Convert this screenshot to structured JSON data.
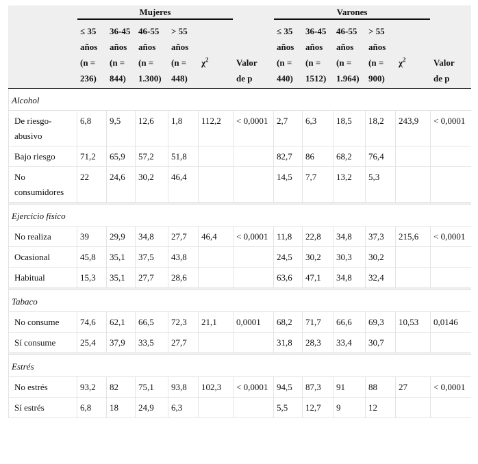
{
  "table": {
    "groups": [
      {
        "name": "Mujeres",
        "columns": [
          [
            "≤ 35",
            "años",
            "(n =",
            "236)"
          ],
          [
            "36-45",
            "años",
            "(n =",
            "844)"
          ],
          [
            "46-55",
            "años",
            "(n =",
            "1.300)"
          ],
          [
            "> 55",
            "años",
            "(n =",
            "448)"
          ]
        ],
        "chi": "χ",
        "chi_sup": "2",
        "p_label": [
          "Valor",
          "de p"
        ]
      },
      {
        "name": "Varones",
        "columns": [
          [
            "≤ 35",
            "años",
            "(n =",
            "440)"
          ],
          [
            "36-45",
            "años",
            "(n =",
            "1512)"
          ],
          [
            "46-55",
            "años",
            "(n =",
            "1.964)"
          ],
          [
            "> 55",
            "años",
            "(n =",
            "900)"
          ]
        ],
        "chi": "χ",
        "chi_sup": "2",
        "p_label": [
          "Valor",
          "de p"
        ]
      }
    ],
    "sections": [
      {
        "title": "Alcohol",
        "rows": [
          [
            "De riesgo-abusivo",
            "6,8",
            "9,5",
            "12,6",
            "1,8",
            "112,2",
            "< 0,0001",
            "2,7",
            "6,3",
            "18,5",
            "18,2",
            "243,9",
            "< 0,0001"
          ],
          [
            "Bajo riesgo",
            "71,2",
            "65,9",
            "57,2",
            "51,8",
            null,
            null,
            "82,7",
            "86",
            "68,2",
            "76,4",
            null,
            null
          ],
          [
            "No consumidores",
            "22",
            "24,6",
            "30,2",
            "46,4",
            null,
            null,
            "14,5",
            "7,7",
            "13,2",
            "5,3",
            null,
            null
          ]
        ]
      },
      {
        "title": "Ejercicio físico",
        "rows": [
          [
            "No realiza",
            "39",
            "29,9",
            "34,8",
            "27,7",
            "46,4",
            "< 0,0001",
            "11,8",
            "22,8",
            "34,8",
            "37,3",
            "215,6",
            "< 0,0001"
          ],
          [
            "Ocasional",
            "45,8",
            "35,1",
            "37,5",
            "43,8",
            null,
            null,
            "24,5",
            "30,2",
            "30,3",
            "30,2",
            null,
            null
          ],
          [
            "Habitual",
            "15,3",
            "35,1",
            "27,7",
            "28,6",
            null,
            null,
            "63,6",
            "47,1",
            "34,8",
            "32,4",
            null,
            null
          ]
        ]
      },
      {
        "title": "Tabaco",
        "rows": [
          [
            "No consume",
            "74,6",
            "62,1",
            "66,5",
            "72,3",
            "21,1",
            "0,0001",
            "68,2",
            "71,7",
            "66,6",
            "69,3",
            "10,53",
            "0,0146"
          ],
          [
            "Sí consume",
            "25,4",
            "37,9",
            "33,5",
            "27,7",
            null,
            null,
            "31,8",
            "28,3",
            "33,4",
            "30,7",
            null,
            null
          ]
        ]
      },
      {
        "title": "Estrés",
        "rows": [
          [
            "No estrés",
            "93,2",
            "82",
            "75,1",
            "93,8",
            "102,3",
            "< 0,0001",
            "94,5",
            "87,3",
            "91",
            "88",
            "27",
            "< 0,0001"
          ],
          [
            "Sí estrés",
            "6,8",
            "18",
            "24,9",
            "6,3",
            null,
            null,
            "5,5",
            "12,7",
            "9",
            "12",
            null,
            null
          ]
        ]
      }
    ]
  }
}
